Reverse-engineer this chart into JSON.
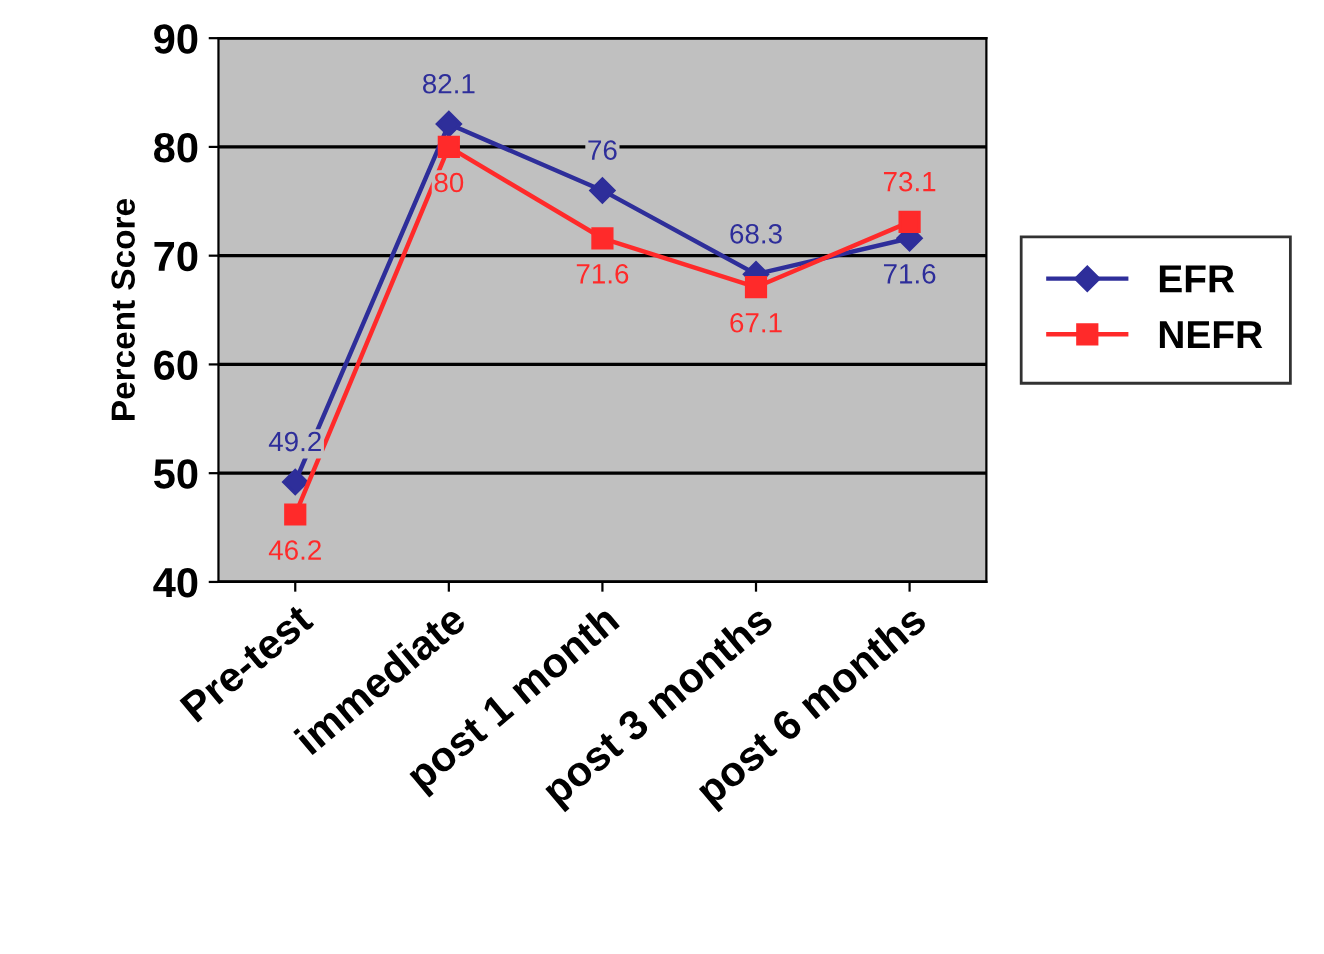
{
  "chart_data": {
    "type": "line",
    "ylabel": "Percent Score",
    "categories": [
      "Pre-test",
      "immediate",
      "post 1 month",
      "post 3 months",
      "post 6 months"
    ],
    "series": [
      {
        "name": "EFR",
        "color": "#2e2e9a",
        "marker": "diamond",
        "values": [
          49.2,
          82.1,
          76,
          68.3,
          71.6
        ]
      },
      {
        "name": "NEFR",
        "color": "#ff2a2a",
        "marker": "square",
        "values": [
          46.2,
          80,
          71.6,
          67.1,
          73.1
        ]
      }
    ],
    "ylim": [
      40,
      90
    ],
    "yticks": [
      40,
      50,
      60,
      70,
      80,
      90
    ],
    "grid": "y",
    "legend": "right",
    "data_labels": true
  }
}
